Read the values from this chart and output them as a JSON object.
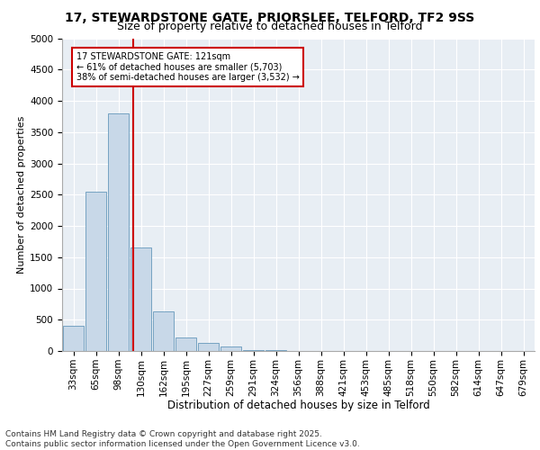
{
  "title1": "17, STEWARDSTONE GATE, PRIORSLEE, TELFORD, TF2 9SS",
  "title2": "Size of property relative to detached houses in Telford",
  "xlabel": "Distribution of detached houses by size in Telford",
  "ylabel": "Number of detached properties",
  "categories": [
    "33sqm",
    "65sqm",
    "98sqm",
    "130sqm",
    "162sqm",
    "195sqm",
    "227sqm",
    "259sqm",
    "291sqm",
    "324sqm",
    "356sqm",
    "388sqm",
    "421sqm",
    "453sqm",
    "485sqm",
    "518sqm",
    "550sqm",
    "582sqm",
    "614sqm",
    "647sqm",
    "679sqm"
  ],
  "values": [
    400,
    2550,
    3800,
    1650,
    630,
    220,
    130,
    75,
    20,
    10,
    5,
    3,
    2,
    1,
    1,
    1,
    1,
    0,
    0,
    0,
    0
  ],
  "bar_color": "#c8d8e8",
  "bar_edge_color": "#6699bb",
  "property_line_x": 2.67,
  "annotation_text": "17 STEWARDSTONE GATE: 121sqm\n← 61% of detached houses are smaller (5,703)\n38% of semi-detached houses are larger (3,532) →",
  "annotation_box_color": "#ffffff",
  "annotation_box_edge": "#cc0000",
  "annotation_text_color": "#000000",
  "vline_color": "#cc0000",
  "ylim": [
    0,
    5000
  ],
  "yticks": [
    0,
    500,
    1000,
    1500,
    2000,
    2500,
    3000,
    3500,
    4000,
    4500,
    5000
  ],
  "background_color": "#e8eef4",
  "footnote": "Contains HM Land Registry data © Crown copyright and database right 2025.\nContains public sector information licensed under the Open Government Licence v3.0.",
  "title1_fontsize": 10,
  "title2_fontsize": 9,
  "xlabel_fontsize": 8.5,
  "ylabel_fontsize": 8,
  "tick_fontsize": 7.5,
  "annotation_fontsize": 7,
  "footnote_fontsize": 6.5
}
